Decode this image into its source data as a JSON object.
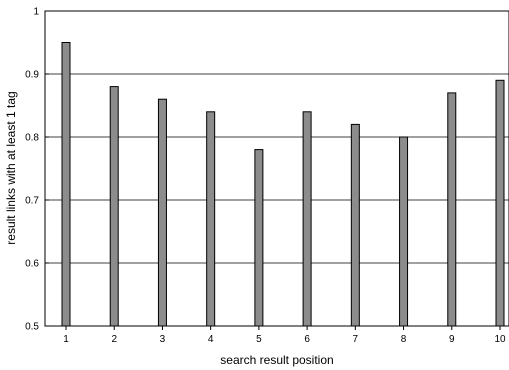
{
  "chart_data": {
    "type": "bar",
    "title": "",
    "xlabel": "search result position",
    "ylabel": "result links with at least 1 tag",
    "categories": [
      "1",
      "2",
      "3",
      "4",
      "5",
      "6",
      "7",
      "8",
      "9",
      "10"
    ],
    "values": [
      0.95,
      0.88,
      0.86,
      0.84,
      0.78,
      0.84,
      0.82,
      0.8,
      0.87,
      0.89
    ],
    "ylim": [
      0.5,
      1
    ],
    "yticks": [
      "0.5",
      "0.6",
      "0.7",
      "0.8",
      "0.9",
      "1"
    ],
    "grid": "horizontal",
    "colors": {
      "bar": "#8c8c8c",
      "outline": "#000000"
    }
  }
}
